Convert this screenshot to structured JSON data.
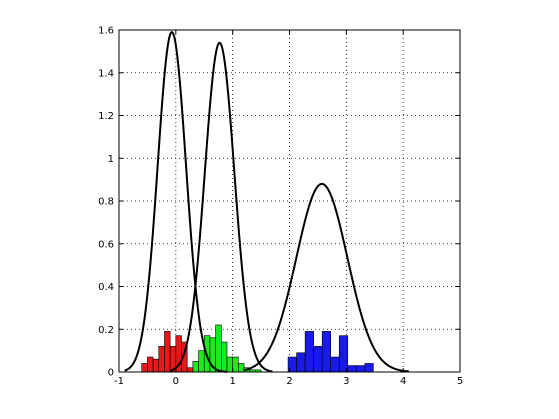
{
  "chart_data": {
    "type": "bar",
    "xlim": [
      -1,
      5
    ],
    "ylim": [
      0,
      1.6
    ],
    "grid": true,
    "x_ticks": [
      "-1",
      "0",
      "1",
      "2",
      "3",
      "4",
      "5"
    ],
    "y_ticks": [
      "0",
      "0.2",
      "0.4",
      "0.6",
      "0.8",
      "1",
      "1.2",
      "1.4",
      "1.6"
    ],
    "histograms": [
      {
        "color": "#e41a1a",
        "bar_width": 0.1,
        "bars": [
          {
            "x": -0.55,
            "y": 0.04
          },
          {
            "x": -0.45,
            "y": 0.07
          },
          {
            "x": -0.35,
            "y": 0.06
          },
          {
            "x": -0.25,
            "y": 0.12
          },
          {
            "x": -0.15,
            "y": 0.19
          },
          {
            "x": -0.05,
            "y": 0.12
          },
          {
            "x": 0.05,
            "y": 0.17
          },
          {
            "x": 0.15,
            "y": 0.14
          },
          {
            "x": 0.25,
            "y": 0.02
          }
        ]
      },
      {
        "color": "#1ee81e",
        "bar_width": 0.1,
        "bars": [
          {
            "x": 0.35,
            "y": 0.05
          },
          {
            "x": 0.45,
            "y": 0.1
          },
          {
            "x": 0.55,
            "y": 0.17
          },
          {
            "x": 0.65,
            "y": 0.16
          },
          {
            "x": 0.75,
            "y": 0.22
          },
          {
            "x": 0.85,
            "y": 0.14
          },
          {
            "x": 0.95,
            "y": 0.07
          },
          {
            "x": 1.05,
            "y": 0.07
          },
          {
            "x": 1.15,
            "y": 0.04
          },
          {
            "x": 1.25,
            "y": 0.02
          },
          {
            "x": 1.35,
            "y": 0.01
          },
          {
            "x": 1.45,
            "y": 0.01
          }
        ]
      },
      {
        "color": "#1a1ae8",
        "bar_width": 0.15,
        "bars": [
          {
            "x": 2.05,
            "y": 0.07
          },
          {
            "x": 2.2,
            "y": 0.09
          },
          {
            "x": 2.35,
            "y": 0.19
          },
          {
            "x": 2.5,
            "y": 0.12
          },
          {
            "x": 2.65,
            "y": 0.19
          },
          {
            "x": 2.8,
            "y": 0.07
          },
          {
            "x": 2.95,
            "y": 0.17
          },
          {
            "x": 3.1,
            "y": 0.03
          },
          {
            "x": 3.25,
            "y": 0.03
          },
          {
            "x": 3.4,
            "y": 0.04
          }
        ]
      }
    ],
    "curves": [
      {
        "color": "#000000",
        "mean": -0.07,
        "sd": 0.25,
        "peak": 1.59,
        "range": [
          -0.9,
          0.9
        ]
      },
      {
        "color": "#000000",
        "mean": 0.77,
        "sd": 0.26,
        "peak": 1.54,
        "range": [
          -0.1,
          1.7
        ]
      },
      {
        "color": "#000000",
        "mean": 2.57,
        "sd": 0.45,
        "peak": 0.88,
        "range": [
          1.2,
          4.1
        ]
      }
    ]
  }
}
